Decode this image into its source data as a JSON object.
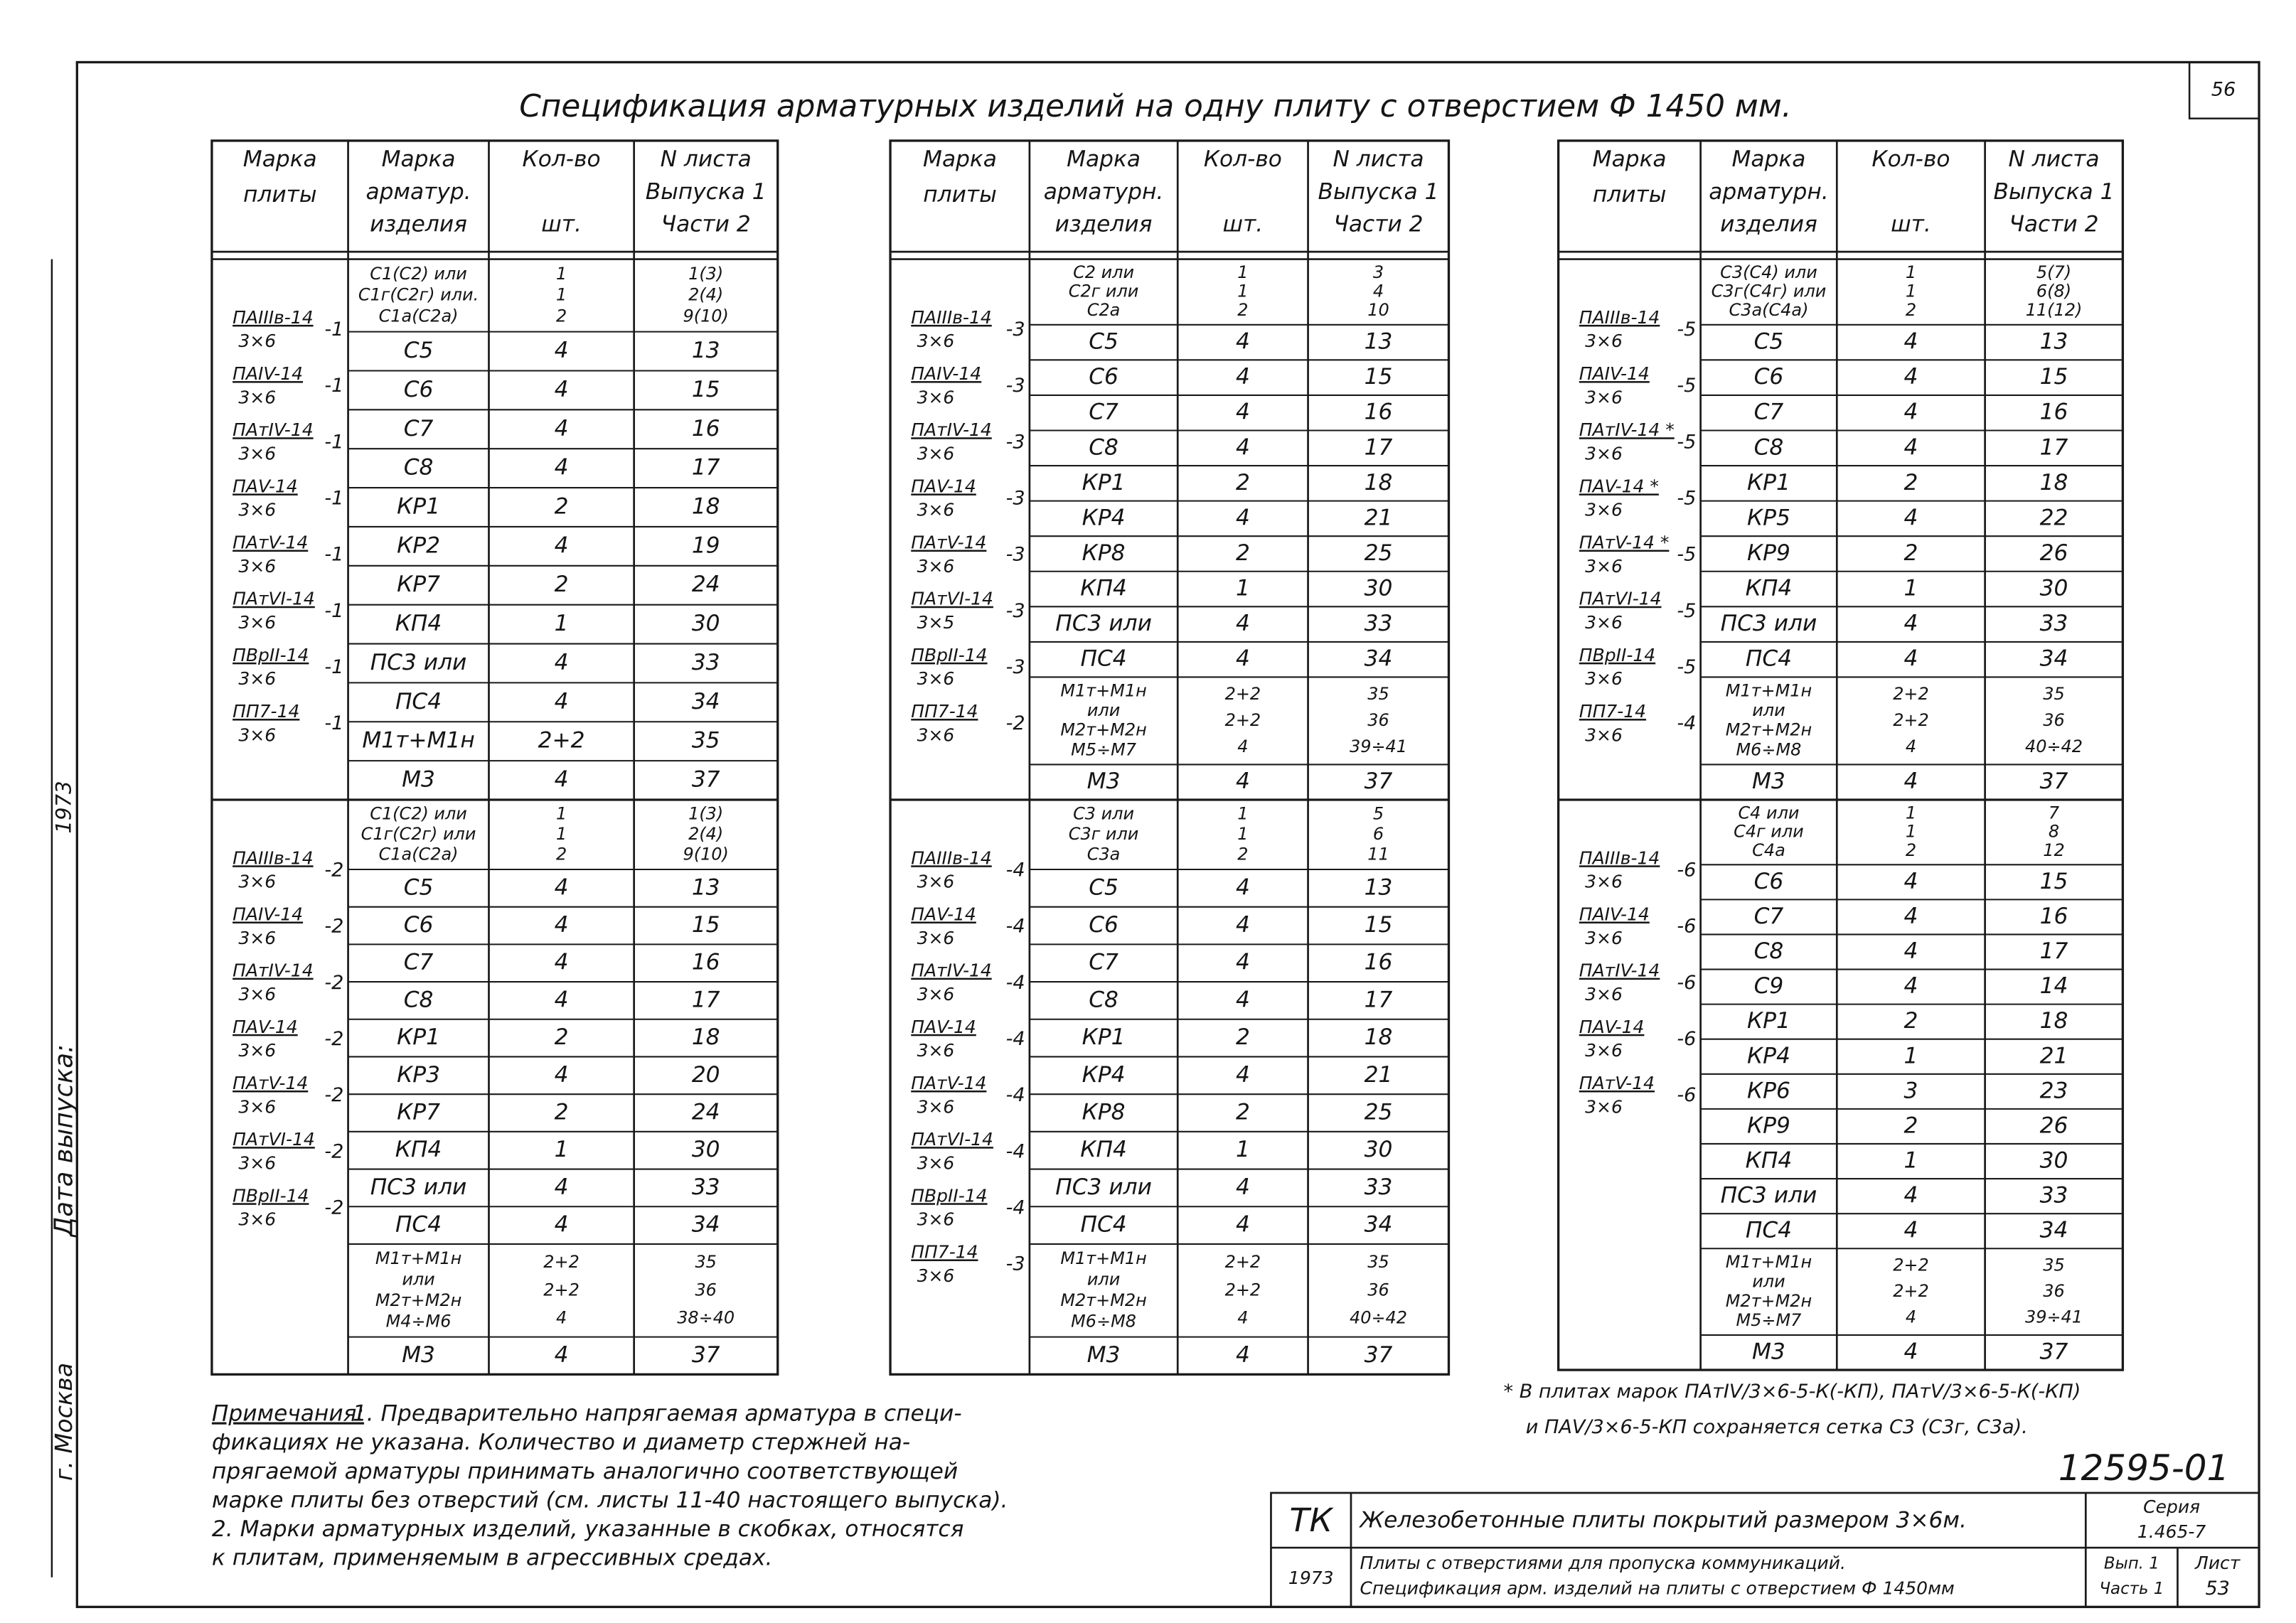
{
  "sheet_number": "56",
  "title": "Спецификация арматурных изделий на одну плиту с отверстием Ф 1450 мм.",
  "tables": [
    {
      "header": [
        [
          "Марка",
          "плиты"
        ],
        [
          "Марка",
          "арматур.",
          "изделия"
        ],
        [
          "Кол-во",
          "шт."
        ],
        [
          "N листа",
          "Выпуска 1",
          "Части 2"
        ]
      ],
      "groups": [
        {
          "plates": [
            {
              "mark": "ПАIIIв-14",
              "size": "3×6",
              "suffix": "-1"
            },
            {
              "mark": "ПАIV-14",
              "size": "3×6",
              "suffix": "-1"
            },
            {
              "mark": "ПАтIV-14",
              "size": "3×6",
              "suffix": "-1"
            },
            {
              "mark": "ПАV-14",
              "size": "3×6",
              "suffix": "-1"
            },
            {
              "mark": "ПАтV-14",
              "size": "3×6",
              "suffix": "-1"
            },
            {
              "mark": "ПАтVI-14",
              "size": "3×6",
              "suffix": "-1"
            },
            {
              "mark": "ПВрII-14",
              "size": "3×6",
              "suffix": "-1"
            },
            {
              "mark": "ПП7-14",
              "size": "3×6",
              "suffix": "-1"
            }
          ],
          "rows": [
            [
              [
                "С1(С2) или",
                "С1г(С2г) или.",
                "С1а(С2а)"
              ],
              [
                "1",
                "1",
                "2"
              ],
              [
                "1(3)",
                "2(4)",
                "9(10)"
              ]
            ],
            [
              "С5",
              "4",
              "13"
            ],
            [
              "С6",
              "4",
              "15"
            ],
            [
              "С7",
              "4",
              "16"
            ],
            [
              "С8",
              "4",
              "17"
            ],
            [
              "КР1",
              "2",
              "18"
            ],
            [
              "КР2",
              "4",
              "19"
            ],
            [
              "КР7",
              "2",
              "24"
            ],
            [
              "КП4",
              "1",
              "30"
            ],
            [
              "ПС3 или",
              "4",
              "33"
            ],
            [
              "ПС4",
              "4",
              "34"
            ],
            [
              "М1т+М1н",
              "2+2",
              "35"
            ],
            [
              "М3",
              "4",
              "37"
            ]
          ]
        },
        {
          "plates": [
            {
              "mark": "ПАIIIв-14",
              "size": "3×6",
              "suffix": "-2"
            },
            {
              "mark": "ПАIV-14",
              "size": "3×6",
              "suffix": "-2"
            },
            {
              "mark": "ПАтIV-14",
              "size": "3×6",
              "suffix": "-2"
            },
            {
              "mark": "ПАV-14",
              "size": "3×6",
              "suffix": "-2"
            },
            {
              "mark": "ПАтV-14",
              "size": "3×6",
              "suffix": "-2"
            },
            {
              "mark": "ПАтVI-14",
              "size": "3×6",
              "suffix": "-2"
            },
            {
              "mark": "ПВрII-14",
              "size": "3×6",
              "suffix": "-2"
            }
          ],
          "rows": [
            [
              [
                "С1(С2) или",
                "С1г(С2г) или",
                "С1а(С2а)"
              ],
              [
                "1",
                "1",
                "2"
              ],
              [
                "1(3)",
                "2(4)",
                "9(10)"
              ]
            ],
            [
              "С5",
              "4",
              "13"
            ],
            [
              "С6",
              "4",
              "15"
            ],
            [
              "С7",
              "4",
              "16"
            ],
            [
              "С8",
              "4",
              "17"
            ],
            [
              "КР1",
              "2",
              "18"
            ],
            [
              "КР3",
              "4",
              "20"
            ],
            [
              "КР7",
              "2",
              "24"
            ],
            [
              "КП4",
              "1",
              "30"
            ],
            [
              "ПС3 или",
              "4",
              "33"
            ],
            [
              "ПС4",
              "4",
              "34"
            ],
            [
              [
                "М1т+М1н",
                "или",
                "М2т+М2н",
                "М4÷М6"
              ],
              [
                "2+2",
                "2+2",
                "4"
              ],
              [
                "35",
                "36",
                "38÷40"
              ]
            ],
            [
              "М3",
              "4",
              "37"
            ]
          ]
        }
      ]
    },
    {
      "header": [
        [
          "Марка",
          "плиты"
        ],
        [
          "Марка",
          "арматурн.",
          "изделия"
        ],
        [
          "Кол-во",
          "шт."
        ],
        [
          "N листа",
          "Выпуска 1",
          "Части 2"
        ]
      ],
      "groups": [
        {
          "plates": [
            {
              "mark": "ПАIIIв-14",
              "size": "3×6",
              "suffix": "-3"
            },
            {
              "mark": "ПАIV-14",
              "size": "3×6",
              "suffix": "-3"
            },
            {
              "mark": "ПАтIV-14",
              "size": "3×6",
              "suffix": "-3"
            },
            {
              "mark": "ПАV-14",
              "size": "3×6",
              "suffix": "-3"
            },
            {
              "mark": "ПАтV-14",
              "size": "3×6",
              "suffix": "-3"
            },
            {
              "mark": "ПАтVI-14",
              "size": "3×5",
              "suffix": "-3"
            },
            {
              "mark": "ПВрII-14",
              "size": "3×6",
              "suffix": "-3"
            },
            {
              "mark": "ПП7-14",
              "size": "3×6",
              "suffix": "-2"
            }
          ],
          "rows": [
            [
              [
                "С2 или",
                "С2г или",
                "С2а"
              ],
              [
                "1",
                "1",
                "2"
              ],
              [
                "3",
                "4",
                "10"
              ]
            ],
            [
              "С5",
              "4",
              "13"
            ],
            [
              "С6",
              "4",
              "15"
            ],
            [
              "С7",
              "4",
              "16"
            ],
            [
              "С8",
              "4",
              "17"
            ],
            [
              "КР1",
              "2",
              "18"
            ],
            [
              "КР4",
              "4",
              "21"
            ],
            [
              "КР8",
              "2",
              "25"
            ],
            [
              "КП4",
              "1",
              "30"
            ],
            [
              "ПС3 или",
              "4",
              "33"
            ],
            [
              "ПС4",
              "4",
              "34"
            ],
            [
              [
                "М1т+М1н",
                "или",
                "М2т+М2н",
                "М5÷М7"
              ],
              [
                "2+2",
                "2+2",
                "4"
              ],
              [
                "35",
                "36",
                "39÷41"
              ]
            ],
            [
              "М3",
              "4",
              "37"
            ]
          ]
        },
        {
          "plates": [
            {
              "mark": "ПАIIIв-14",
              "size": "3×6",
              "suffix": "-4"
            },
            {
              "mark": "ПАV-14",
              "size": "3×6",
              "suffix": "-4"
            },
            {
              "mark": "ПАтIV-14",
              "size": "3×6",
              "suffix": "-4"
            },
            {
              "mark": "ПАV-14",
              "size": "3×6",
              "suffix": "-4"
            },
            {
              "mark": "ПАтV-14",
              "size": "3×6",
              "suffix": "-4"
            },
            {
              "mark": "ПАтVI-14",
              "size": "3×6",
              "suffix": "-4"
            },
            {
              "mark": "ПВрII-14",
              "size": "3×6",
              "suffix": "-4"
            },
            {
              "mark": "ПП7-14",
              "size": "3×6",
              "suffix": "-3"
            }
          ],
          "rows": [
            [
              [
                "С3 или",
                "С3г или",
                "С3а"
              ],
              [
                "1",
                "1",
                "2"
              ],
              [
                "5",
                "6",
                "11"
              ]
            ],
            [
              "С5",
              "4",
              "13"
            ],
            [
              "С6",
              "4",
              "15"
            ],
            [
              "С7",
              "4",
              "16"
            ],
            [
              "С8",
              "4",
              "17"
            ],
            [
              "КР1",
              "2",
              "18"
            ],
            [
              "КР4",
              "4",
              "21"
            ],
            [
              "КР8",
              "2",
              "25"
            ],
            [
              "КП4",
              "1",
              "30"
            ],
            [
              "ПС3 или",
              "4",
              "33"
            ],
            [
              "ПС4",
              "4",
              "34"
            ],
            [
              [
                "М1т+М1н",
                "или",
                "М2т+М2н",
                "М6÷М8"
              ],
              [
                "2+2",
                "2+2",
                "4"
              ],
              [
                "35",
                "36",
                "40÷42"
              ]
            ],
            [
              "М3",
              "4",
              "37"
            ]
          ]
        }
      ]
    },
    {
      "header": [
        [
          "Марка",
          "плиты"
        ],
        [
          "Марка",
          "арматурн.",
          "изделия"
        ],
        [
          "Кол-во",
          "шт."
        ],
        [
          "N листа",
          "Выпуска 1",
          "Части 2"
        ]
      ],
      "groups": [
        {
          "plates": [
            {
              "mark": "ПАIIIв-14",
              "size": "3×6",
              "suffix": "-5"
            },
            {
              "mark": "ПАIV-14",
              "size": "3×6",
              "suffix": "-5"
            },
            {
              "mark": "ПАтIV-14 *",
              "size": "3×6",
              "suffix": "-5"
            },
            {
              "mark": "ПАV-14 *",
              "size": "3×6",
              "suffix": "-5"
            },
            {
              "mark": "ПАтV-14 *",
              "size": "3×6",
              "suffix": "-5"
            },
            {
              "mark": "ПАтVI-14",
              "size": "3×6",
              "suffix": "-5"
            },
            {
              "mark": "ПВрII-14",
              "size": "3×6",
              "suffix": "-5"
            },
            {
              "mark": "ПП7-14",
              "size": "3×6",
              "suffix": "-4"
            }
          ],
          "rows": [
            [
              [
                "С3(С4) или",
                "С3г(С4г) или",
                "С3а(С4а)"
              ],
              [
                "1",
                "1",
                "2"
              ],
              [
                "5(7)",
                "6(8)",
                "11(12)"
              ]
            ],
            [
              "С5",
              "4",
              "13"
            ],
            [
              "С6",
              "4",
              "15"
            ],
            [
              "С7",
              "4",
              "16"
            ],
            [
              "С8",
              "4",
              "17"
            ],
            [
              "КР1",
              "2",
              "18"
            ],
            [
              "КР5",
              "4",
              "22"
            ],
            [
              "КР9",
              "2",
              "26"
            ],
            [
              "КП4",
              "1",
              "30"
            ],
            [
              "ПС3 или",
              "4",
              "33"
            ],
            [
              "ПС4",
              "4",
              "34"
            ],
            [
              [
                "М1т+М1н",
                "или",
                "М2т+М2н",
                "М6÷М8"
              ],
              [
                "2+2",
                "2+2",
                "4"
              ],
              [
                "35",
                "36",
                "40÷42"
              ]
            ],
            [
              "М3",
              "4",
              "37"
            ]
          ]
        },
        {
          "plates": [
            {
              "mark": "ПАIIIв-14",
              "size": "3×6",
              "suffix": "-6"
            },
            {
              "mark": "ПАIV-14",
              "size": "3×6",
              "suffix": "-6"
            },
            {
              "mark": "ПАтIV-14",
              "size": "3×6",
              "suffix": "-6"
            },
            {
              "mark": "ПАV-14",
              "size": "3×6",
              "suffix": "-6"
            },
            {
              "mark": "ПАтV-14",
              "size": "3×6",
              "suffix": "-6"
            }
          ],
          "rows": [
            [
              [
                "С4 или",
                "С4г или",
                "С4а"
              ],
              [
                "1",
                "1",
                "2"
              ],
              [
                "7",
                "8",
                "12"
              ]
            ],
            [
              "С6",
              "4",
              "15"
            ],
            [
              "С7",
              "4",
              "16"
            ],
            [
              "С8",
              "4",
              "17"
            ],
            [
              "С9",
              "4",
              "14"
            ],
            [
              "КР1",
              "2",
              "18"
            ],
            [
              "КР4",
              "1",
              "21"
            ],
            [
              "КР6",
              "3",
              "23"
            ],
            [
              "КР9",
              "2",
              "26"
            ],
            [
              "КП4",
              "1",
              "30"
            ],
            [
              "ПС3 или",
              "4",
              "33"
            ],
            [
              "ПС4",
              "4",
              "34"
            ],
            [
              [
                "М1т+М1н",
                "или",
                "М2т+М2н",
                "М5÷М7"
              ],
              [
                "2+2",
                "2+2",
                "4"
              ],
              [
                "35",
                "36",
                "39÷41"
              ]
            ],
            [
              "М3",
              "4",
              "37"
            ]
          ]
        }
      ]
    }
  ],
  "notes": {
    "label": "Примечания:",
    "lines": [
      "1. Предварительно напрягаемая арматура в специ-",
      "фикациях не указана. Количество и диаметр стержней на-",
      "прягаемой арматуры принимать аналогично соответствующей",
      "марке плиты без отверстий (см. листы 11-40 настоящего выпуска).",
      "2. Марки арматурных изделий, указанные в скобках, относятся",
      "к плитам, применяемым в агрессивных средах."
    ]
  },
  "footnote": [
    "* В плитах марок ПАтIV/3×6-5-К(-КП), ПАтV/3×6-5-К(-КП)",
    "и ПАV/3×6-5-КП сохраняется сетка С3 (С3г, С3а)."
  ],
  "doc_code": "12595-01",
  "stamp": {
    "org": "ТК",
    "year": "1973",
    "title": "Железобетонные плиты покрытий размером 3×6м.",
    "subtitle": [
      "Плиты с отверстиями для пропуска коммуникаций.",
      "Спецификация арм. изделий на плиты с отверстием Ф 1450мм"
    ],
    "series_label": "Серия",
    "series": "1.465-7",
    "issue": "Вып. 1",
    "part": "Часть 1",
    "sheet_label": "Лист",
    "sheet": "53"
  },
  "margin": {
    "year": "1973",
    "date_label": "Дата выпуска:",
    "city": "г. Москва"
  }
}
